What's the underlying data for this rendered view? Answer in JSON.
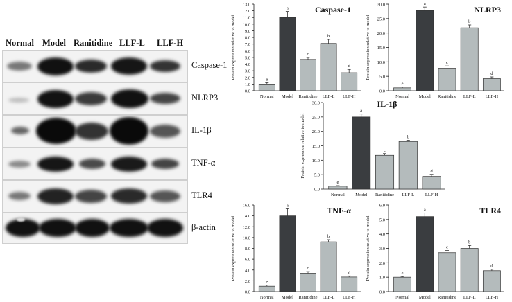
{
  "blot": {
    "lanes": [
      "Normal",
      "Model",
      "Ranitidine",
      "LLF-L",
      "LLF-H"
    ],
    "proteins": [
      "Caspase-1",
      "NLRP3",
      "IL-1β",
      "TNF-α",
      "TLR4",
      "β-actin"
    ]
  },
  "colors": {
    "model_bar": "#3a3d40",
    "other_bar": "#b4bbbc"
  },
  "chart_data": [
    {
      "type": "bar",
      "title": "Caspase-1",
      "categories": [
        "Normal",
        "Model",
        "Ranitidine",
        "LLF-L",
        "LLF-H"
      ],
      "values": [
        1.0,
        11.0,
        4.7,
        7.1,
        2.7
      ],
      "errors": [
        0.2,
        0.9,
        0.3,
        0.6,
        0.5
      ],
      "letters": [
        "e",
        "a",
        "c",
        "b",
        "d"
      ],
      "ylabel": "Protein expression relative to model",
      "ylim": [
        0,
        13
      ],
      "yticks": [
        "0.0",
        "1.0",
        "2.0",
        "3.0",
        "4.0",
        "5.0",
        "6.0",
        "7.0",
        "8.0",
        "9.0",
        "10.0",
        "11.0",
        "12.0",
        "13.0"
      ]
    },
    {
      "type": "bar",
      "title": "NLRP3",
      "categories": [
        "Normal",
        "Model",
        "Ranitidine",
        "LLF-L",
        "LLF-H"
      ],
      "values": [
        1.0,
        27.8,
        7.8,
        21.8,
        4.2
      ],
      "errors": [
        0.3,
        1.2,
        0.8,
        1.0,
        0.6
      ],
      "letters": [
        "e",
        "a",
        "c",
        "b",
        "d"
      ],
      "ylabel": "Protein expression relative to model",
      "ylim": [
        0,
        30
      ],
      "yticks": [
        "0.0",
        "5.0",
        "10.0",
        "15.0",
        "20.0",
        "25.0",
        "30.0"
      ]
    },
    {
      "type": "bar",
      "title": "IL-1β",
      "categories": [
        "Normal",
        "Model",
        "Ranitidine",
        "LLF-L",
        "LLF-H"
      ],
      "values": [
        1.0,
        25.0,
        11.7,
        16.5,
        4.4
      ],
      "errors": [
        0.2,
        1.0,
        0.6,
        0.4,
        0.7
      ],
      "letters": [
        "e",
        "a",
        "c",
        "b",
        "d"
      ],
      "ylabel": "Protein expression relative to model",
      "ylim": [
        0,
        30
      ],
      "yticks": [
        "0.0",
        "5.0",
        "10.0",
        "15.0",
        "20.0",
        "25.0",
        "30.0"
      ]
    },
    {
      "type": "bar",
      "title": "TNF-α",
      "categories": [
        "Normal",
        "Model",
        "Ranitidine",
        "LLF-L",
        "LLF-H"
      ],
      "values": [
        1.0,
        14.0,
        3.4,
        9.2,
        2.7
      ],
      "errors": [
        0.2,
        1.3,
        0.3,
        0.4,
        0.2
      ],
      "letters": [
        "e",
        "a",
        "c",
        "b",
        "d"
      ],
      "ylabel": "Protein expression relative to model",
      "ylim": [
        0,
        16
      ],
      "yticks": [
        "0.0",
        "2.0",
        "4.0",
        "6.0",
        "8.0",
        "10.0",
        "12.0",
        "14.0",
        "16.0"
      ]
    },
    {
      "type": "bar",
      "title": "TLR4",
      "categories": [
        "Normal",
        "Model",
        "Ranitidine",
        "LLF-L",
        "LLF-H"
      ],
      "values": [
        1.0,
        5.2,
        2.7,
        3.0,
        1.45
      ],
      "errors": [
        0.05,
        0.25,
        0.15,
        0.2,
        0.1
      ],
      "letters": [
        "e",
        "a",
        "c",
        "b",
        "d"
      ],
      "ylabel": "Protein expression relative to model",
      "ylim": [
        0,
        6
      ],
      "yticks": [
        "0.0",
        "1.0",
        "2.0",
        "3.0",
        "4.0",
        "5.0",
        "6.0"
      ]
    }
  ]
}
